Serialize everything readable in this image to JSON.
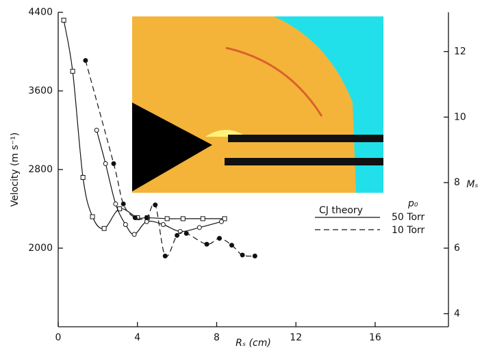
{
  "chart_data": {
    "type": "line",
    "y_label": "Velocity (m s⁻¹)",
    "x_label": "Rₛ (cm)",
    "y2_label": "Mₛ",
    "xlim": [
      0,
      19.7
    ],
    "xticks": [
      0,
      4,
      8,
      12,
      16
    ],
    "ylim": [
      1200,
      4400
    ],
    "yticks": [
      2000,
      2800,
      3600,
      4400
    ],
    "y2lim": [
      3.6,
      13.2
    ],
    "y2ticks": [
      4,
      6,
      8,
      10,
      12
    ],
    "grid": false,
    "color": "#111111",
    "series": [
      {
        "marker": "square",
        "dash": false,
        "x": [
          0.28,
          0.73,
          1.25,
          1.73,
          2.32,
          3.1,
          4.0,
          4.5,
          5.5,
          6.3,
          7.3,
          8.4
        ],
        "values": [
          4320,
          3800,
          2720,
          2320,
          2200,
          2400,
          2310,
          2310,
          2300,
          2300,
          2300,
          2300
        ]
      },
      {
        "marker": "circle-open",
        "dash": false,
        "x": [
          1.94,
          2.39,
          2.9,
          3.4,
          3.84,
          4.47,
          5.3,
          6.16,
          7.13,
          8.24
        ],
        "values": [
          3200,
          2860,
          2450,
          2240,
          2140,
          2270,
          2240,
          2170,
          2210,
          2270
        ]
      },
      {
        "marker": "circle-filled",
        "dash": true,
        "x": [
          1.38,
          2.8,
          3.29,
          3.88,
          4.47,
          4.9,
          5.4,
          6.0,
          6.47,
          7.5,
          8.14,
          8.76,
          9.3,
          9.93
        ],
        "values": [
          3910,
          2860,
          2450,
          2310,
          2310,
          2440,
          1920,
          2130,
          2150,
          2040,
          2100,
          2030,
          1930,
          1920
        ]
      }
    ],
    "legend": {
      "title": "p₀",
      "label": "CJ theory",
      "entries": [
        "50 Torr",
        "10 Torr"
      ]
    }
  }
}
